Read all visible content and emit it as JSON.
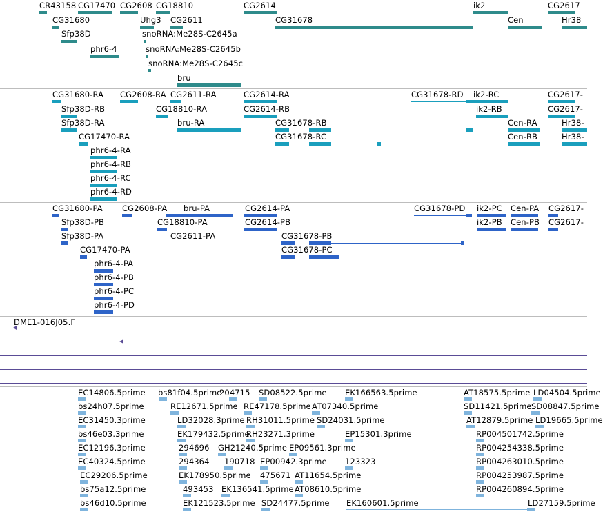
{
  "colors": {
    "gene": "#2e8b8b",
    "transcript_rna": "#1a9fbd",
    "transcript_prot": "#2e64c8",
    "est_line": "#5a4c96",
    "est_read": "#7fb4dd",
    "separator": "#bdbdbd"
  },
  "genes": {
    "rows": [
      [
        "CR43158",
        "CG17470",
        "CG2608",
        "CG18810",
        "CG2614",
        "ik2",
        "CG2617"
      ],
      [
        "CG31680",
        "Uhg3",
        "CG2611",
        "CG31678",
        "Cen",
        "Hr38"
      ],
      [
        "Sfp38D",
        "snoRNA:Me28S-C2645a"
      ],
      [
        "phr6-4",
        "snoRNA:Me28S-C2645b"
      ],
      [
        "snoRNA:Me28S-C2645c"
      ],
      [
        "bru"
      ]
    ]
  },
  "transcripts_rna": [
    "CG31680-RA",
    "CG2608-RA",
    "CG2611-RA",
    "CG2614-RA",
    "CG31678-RD",
    "ik2-RC",
    "CG2617-",
    "Sfp38D-RB",
    "CG18810-RA",
    "CG2614-RB",
    "ik2-RB",
    "CG2617-",
    "Sfp38D-RA",
    "bru-RA",
    "CG31678-RB",
    "Cen-RA",
    "Hr38-",
    "CG17470-RA",
    "CG31678-RC",
    "Cen-RB",
    "Hr38-",
    "phr6-4-RA",
    "phr6-4-RB",
    "phr6-4-RC",
    "phr6-4-RD"
  ],
  "transcripts_prot": [
    "CG31680-PA",
    "CG2608-PA",
    "bru-PA",
    "CG2614-PA",
    "CG31678-PD",
    "ik2-PC",
    "Cen-PA",
    "CG2617-",
    "Sfp38D-PB",
    "CG18810-PA",
    "CG2614-PB",
    "ik2-PB",
    "Cen-PB",
    "CG2617-",
    "Sfp38D-PA",
    "CG2611-PA",
    "CG31678-PB",
    "CG17470-PA",
    "CG31678-PC",
    "phr6-4-PA",
    "phr6-4-PB",
    "phr6-4-PC",
    "phr6-4-PD"
  ],
  "clone": {
    "label": "DME1-016J05.F"
  },
  "ests": [
    "EC14806.5prime",
    "bs81f04.5prime",
    "204715",
    "SD08522.5prime",
    "EK166563.5prime",
    "AT18575.5prime",
    "LD04504.5prime",
    "bs24h07.5prime",
    "RE12671.5prime",
    "RE47178.5prime",
    "AT07340.5prime",
    "SD11421.5prime",
    "SD08847.5prime",
    "EC31450.3prime",
    "LD32028.3prime",
    "RH31011.5prime",
    "SD24031.5prime",
    "AT12879.5prime",
    "LD19665.5prime",
    "bs46e03.3prime",
    "EK179432.5prime",
    "RH23271.3prime",
    "EP15301.3prime",
    "RP004501742.5prime",
    "EC12196.3prime",
    "294696",
    "GH21240.5prime",
    "EP09561.3prime",
    "RP004254338.5prime",
    "EC40324.5prime",
    "294364",
    "190718",
    "EP00942.3prime",
    "123323",
    "RP004263010.5prime",
    "EC29206.5prime",
    "EK178950.5prime",
    "475671",
    "AT11654.5prime",
    "RP004253987.5prime",
    "bs75a12.5prime",
    "493453",
    "EK136541.5prime",
    "AT08610.5prime",
    "RP004260894.5prime",
    "bs46d10.5prime",
    "EK121523.5prime",
    "SD24477.5prime",
    "EK160601.5prime",
    "LD27159.5prime"
  ]
}
